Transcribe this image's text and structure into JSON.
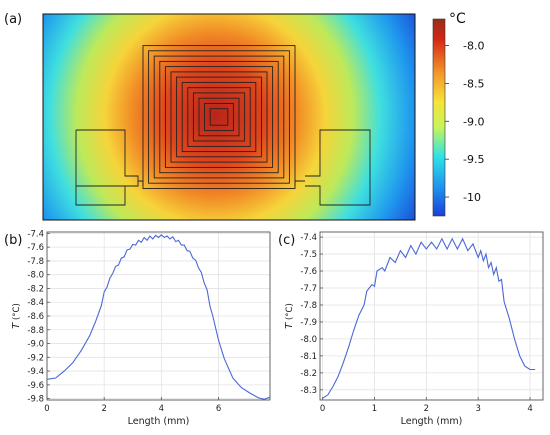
{
  "panel_a": {
    "label": "(a)",
    "colorbar": {
      "unit": "°C",
      "ticks": [
        "-8.0",
        "-8.5",
        "-9.0",
        "-9.5",
        "-10"
      ],
      "tick_values": [
        -8.0,
        -8.5,
        -9.0,
        -9.5,
        -10.0
      ],
      "range": [
        -10.25,
        -7.65
      ],
      "colors": [
        "#1c3fd6",
        "#1e90ee",
        "#2ee1e8",
        "#c6f55a",
        "#f7e23a",
        "#f59a2a",
        "#d52514",
        "#962e1c"
      ]
    }
  },
  "chart_data": [
    {
      "type": "line",
      "panel": "(b)",
      "xlabel": "Length (mm)",
      "ylabel_italic": "T",
      "ylabel_unit": "(°C)",
      "xlim": [
        0,
        7.8
      ],
      "ylim": [
        -9.82,
        -7.38
      ],
      "xticks": [
        0,
        2,
        4,
        6
      ],
      "yticks": [
        -7.4,
        -7.6,
        -7.8,
        -8.0,
        -8.2,
        -8.4,
        -8.6,
        -8.8,
        -9.0,
        -9.2,
        -9.4,
        -9.6,
        -9.8
      ],
      "series": [
        {
          "color": "#4a68d8",
          "x": [
            0,
            0.3,
            0.6,
            0.9,
            1.2,
            1.5,
            1.7,
            1.9,
            2.0,
            2.1,
            2.2,
            2.3,
            2.4,
            2.5,
            2.6,
            2.7,
            2.8,
            2.9,
            3.0,
            3.1,
            3.2,
            3.3,
            3.4,
            3.5,
            3.6,
            3.7,
            3.8,
            3.9,
            4.0,
            4.1,
            4.2,
            4.3,
            4.4,
            4.5,
            4.6,
            4.7,
            4.8,
            4.9,
            5.0,
            5.1,
            5.2,
            5.3,
            5.4,
            5.5,
            5.6,
            5.7,
            5.8,
            6.0,
            6.2,
            6.5,
            6.8,
            7.1,
            7.4,
            7.6,
            7.8
          ],
          "y": [
            -9.52,
            -9.5,
            -9.4,
            -9.28,
            -9.1,
            -8.88,
            -8.68,
            -8.45,
            -8.25,
            -8.18,
            -8.05,
            -7.98,
            -7.88,
            -7.86,
            -7.76,
            -7.74,
            -7.64,
            -7.63,
            -7.56,
            -7.57,
            -7.5,
            -7.53,
            -7.46,
            -7.5,
            -7.44,
            -7.48,
            -7.43,
            -7.46,
            -7.42,
            -7.46,
            -7.44,
            -7.48,
            -7.45,
            -7.52,
            -7.5,
            -7.57,
            -7.57,
            -7.65,
            -7.66,
            -7.76,
            -7.79,
            -7.9,
            -7.97,
            -8.12,
            -8.22,
            -8.46,
            -8.6,
            -8.95,
            -9.22,
            -9.5,
            -9.64,
            -9.72,
            -9.79,
            -9.81,
            -9.78
          ]
        }
      ]
    },
    {
      "type": "line",
      "panel": "(c)",
      "xlabel": "Length (mm)",
      "ylabel_italic": "T",
      "ylabel_unit": "(°C)",
      "xlim": [
        -0.05,
        4.25
      ],
      "ylim": [
        -8.36,
        -7.37
      ],
      "xticks": [
        0,
        1,
        2,
        3,
        4
      ],
      "yticks": [
        -7.4,
        -7.5,
        -7.6,
        -7.7,
        -7.8,
        -7.9,
        -8.0,
        -8.1,
        -8.2,
        -8.3
      ],
      "series": [
        {
          "color": "#4a68d8",
          "x": [
            0,
            0.1,
            0.2,
            0.3,
            0.4,
            0.5,
            0.6,
            0.7,
            0.75,
            0.8,
            0.85,
            0.9,
            0.95,
            1.0,
            1.05,
            1.1,
            1.15,
            1.2,
            1.3,
            1.4,
            1.5,
            1.6,
            1.7,
            1.8,
            1.9,
            2.0,
            2.1,
            2.2,
            2.3,
            2.4,
            2.5,
            2.6,
            2.7,
            2.8,
            2.9,
            3.0,
            3.05,
            3.1,
            3.15,
            3.2,
            3.25,
            3.3,
            3.35,
            3.4,
            3.45,
            3.5,
            3.6,
            3.7,
            3.8,
            3.9,
            4.0,
            4.1
          ],
          "y": [
            -8.35,
            -8.33,
            -8.28,
            -8.22,
            -8.14,
            -8.05,
            -7.95,
            -7.86,
            -7.83,
            -7.8,
            -7.72,
            -7.7,
            -7.68,
            -7.69,
            -7.6,
            -7.59,
            -7.58,
            -7.6,
            -7.52,
            -7.55,
            -7.48,
            -7.52,
            -7.45,
            -7.5,
            -7.43,
            -7.47,
            -7.43,
            -7.47,
            -7.41,
            -7.47,
            -7.41,
            -7.47,
            -7.41,
            -7.48,
            -7.44,
            -7.52,
            -7.48,
            -7.54,
            -7.5,
            -7.58,
            -7.55,
            -7.62,
            -7.58,
            -7.66,
            -7.65,
            -7.78,
            -7.88,
            -8.0,
            -8.1,
            -8.16,
            -8.18,
            -8.18
          ]
        }
      ]
    }
  ]
}
